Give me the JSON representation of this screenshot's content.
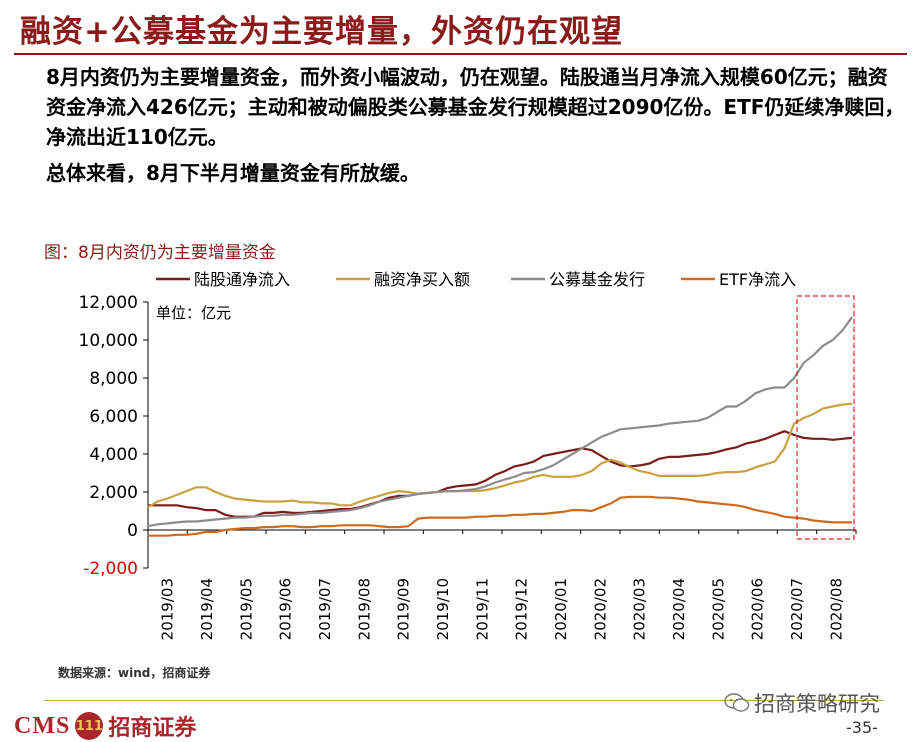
{
  "header": {
    "title": "融资+公募基金为主要增量，外资仍在观望"
  },
  "body": {
    "paragraph1": "8月内资仍为主要增量资金，而外资小幅波动，仍在观望。陆股通当月净流入规模60亿元；融资资金净流入426亿元；主动和被动偏股类公募基金发行规模超过2090亿份。ETF仍延续净赎回，净流出近110亿元。",
    "paragraph2": "总体来看，8月下半月增量资金有所放缓。"
  },
  "chart_caption": "图：8月内资仍为主要增量资金",
  "chart_data": {
    "type": "line",
    "unit_label": "单位：亿元",
    "ylim": [
      -2000,
      12000
    ],
    "y_ticks": [
      "-2,000",
      "0",
      "2,000",
      "4,000",
      "6,000",
      "8,000",
      "10,000",
      "12,000"
    ],
    "y_tick_values": [
      -2000,
      0,
      2000,
      4000,
      6000,
      8000,
      10000,
      12000
    ],
    "x_ticks": [
      "2019/03",
      "2019/04",
      "2019/05",
      "2019/06",
      "2019/07",
      "2019/08",
      "2019/09",
      "2019/10",
      "2019/11",
      "2019/12",
      "2020/01",
      "2020/02",
      "2020/03",
      "2020/04",
      "2020/05",
      "2020/06",
      "2020/07",
      "2020/08"
    ],
    "legend_position": "top",
    "grid": false,
    "series": [
      {
        "name": "陆股通净流入",
        "color": "#7b1c1c",
        "values": [
          1300,
          1300,
          1300,
          1300,
          1200,
          1150,
          1050,
          1050,
          800,
          700,
          700,
          700,
          900,
          900,
          950,
          900,
          900,
          950,
          1000,
          1050,
          1100,
          1100,
          1200,
          1350,
          1500,
          1700,
          1800,
          1800,
          1900,
          1950,
          2000,
          2200,
          2300,
          2350,
          2400,
          2600,
          2900,
          3100,
          3350,
          3450,
          3600,
          3900,
          4000,
          4100,
          4200,
          4300,
          4200,
          3900,
          3600,
          3400,
          3350,
          3400,
          3500,
          3750,
          3850,
          3850,
          3900,
          3950,
          4000,
          4100,
          4250,
          4350,
          4550,
          4650,
          4800,
          5000,
          5200,
          5000,
          4850,
          4800,
          4800,
          4750,
          4800,
          4850
        ]
      },
      {
        "name": "融资净买入额",
        "color": "#c9a240",
        "values": [
          1200,
          1500,
          1650,
          1850,
          2050,
          2250,
          2250,
          2000,
          1800,
          1650,
          1600,
          1550,
          1500,
          1500,
          1500,
          1550,
          1450,
          1450,
          1400,
          1400,
          1300,
          1300,
          1500,
          1650,
          1800,
          1950,
          2050,
          2000,
          1900,
          1950,
          2000,
          2050,
          2050,
          2050,
          2050,
          2100,
          2200,
          2350,
          2500,
          2600,
          2800,
          2900,
          2800,
          2800,
          2800,
          2900,
          3100,
          3500,
          3700,
          3550,
          3300,
          3100,
          3000,
          2850,
          2850,
          2850,
          2850,
          2850,
          2900,
          3000,
          3050,
          3050,
          3100,
          3300,
          3450,
          3600,
          4300,
          5600,
          5900,
          6100,
          6400,
          6500,
          6600,
          6650
        ]
      },
      {
        "name": "公募基金发行",
        "color": "#8c8c8c",
        "values": [
          200,
          300,
          350,
          400,
          450,
          450,
          500,
          550,
          600,
          650,
          650,
          700,
          750,
          750,
          800,
          800,
          850,
          900,
          900,
          950,
          1000,
          1050,
          1150,
          1300,
          1500,
          1600,
          1700,
          1800,
          1900,
          1950,
          2000,
          2050,
          2050,
          2100,
          2150,
          2300,
          2500,
          2650,
          2800,
          3000,
          3050,
          3200,
          3400,
          3700,
          4000,
          4300,
          4600,
          4900,
          5100,
          5300,
          5350,
          5400,
          5450,
          5500,
          5600,
          5650,
          5700,
          5750,
          5900,
          6200,
          6500,
          6500,
          6800,
          7200,
          7400,
          7500,
          7500,
          8000,
          8800,
          9200,
          9700,
          10000,
          10500,
          11200
        ]
      },
      {
        "name": "ETF净流入",
        "color": "#cc6a1e",
        "values": [
          -300,
          -300,
          -300,
          -250,
          -250,
          -200,
          -100,
          -100,
          0,
          50,
          100,
          100,
          150,
          150,
          200,
          200,
          150,
          150,
          200,
          200,
          250,
          250,
          250,
          250,
          200,
          150,
          150,
          200,
          600,
          650,
          650,
          650,
          650,
          650,
          700,
          700,
          750,
          750,
          800,
          800,
          850,
          850,
          900,
          950,
          1050,
          1050,
          1000,
          1200,
          1400,
          1700,
          1750,
          1750,
          1750,
          1700,
          1700,
          1650,
          1600,
          1500,
          1450,
          1400,
          1350,
          1300,
          1200,
          1050,
          950,
          850,
          700,
          650,
          600,
          500,
          450,
          400,
          400,
          400
        ]
      }
    ]
  },
  "source": "数据来源：wind，招商证券",
  "footer": {
    "logo_latin": "CMS",
    "logo_badge": "111",
    "logo_cn": "招商证券",
    "wechat_account": "招商策略研究",
    "page_number": "-35-"
  },
  "colors": {
    "brand_red": "#8b1a1a",
    "highlight_box": "#d9262c",
    "negative_tick": "#e00000"
  }
}
